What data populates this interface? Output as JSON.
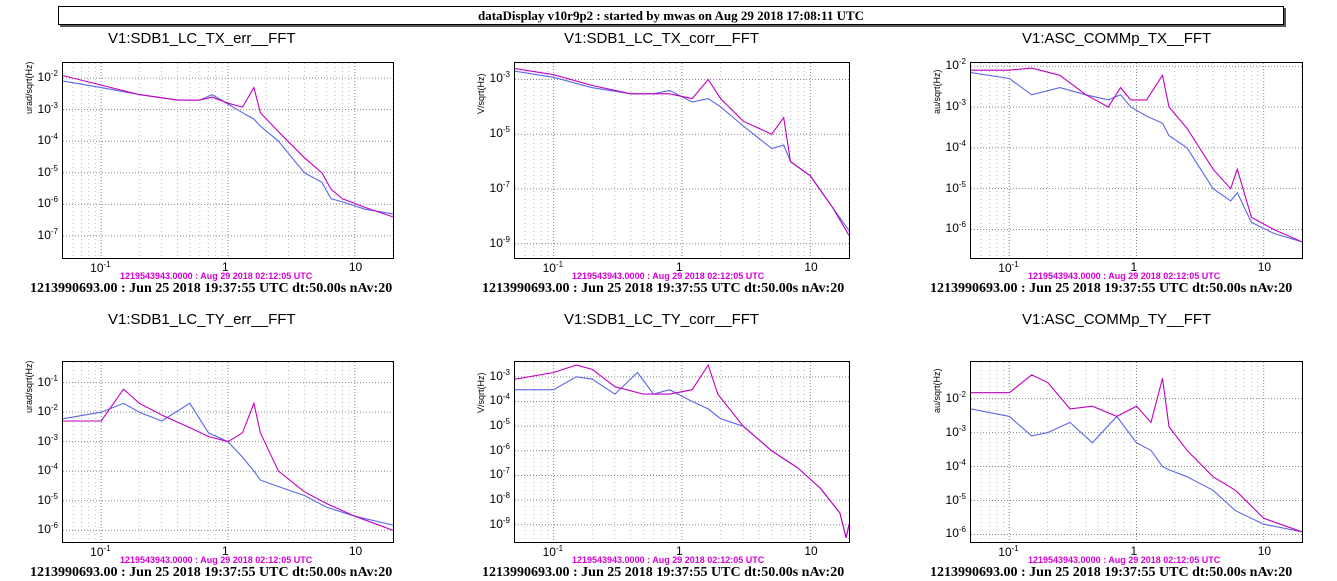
{
  "header": {
    "banner": "dataDisplay v10r9p2 : started by mwas on Aug 29 2018 17:08:11 UTC"
  },
  "colors": {
    "reference": "#5a68e8",
    "current": "#c000c0",
    "stamp": "#d400d4"
  },
  "chart_data": [
    {
      "type": "line",
      "title": "V1:SDB1_LC_TX_err__FFT",
      "ylabel": "urad/sqrt(Hz)",
      "xscale": "log",
      "yscale": "log",
      "xlim": [
        0.05,
        20
      ],
      "ylim": [
        2e-08,
        0.03
      ],
      "xticks": [
        "10-1",
        "1",
        "10"
      ],
      "yticks_exp": [
        -7,
        -6,
        -5,
        -4,
        -3,
        -2
      ],
      "ytick_mantissa": "10",
      "reference_stamp": "1219543943.0000 : Aug 29 2018 02:12:05 UTC",
      "footer": "1213990693.00 : Jun 25 2018 19:37:55 UTC dt:50.00s nAv:20",
      "grid": true,
      "series": [
        {
          "color": "magenta",
          "x": [
            0.05,
            0.1,
            0.2,
            0.4,
            0.6,
            0.75,
            1,
            1.3,
            1.6,
            1.8,
            2.5,
            4,
            5.5,
            6.5,
            8,
            12,
            20
          ],
          "y": [
            0.012,
            0.006,
            0.003,
            0.002,
            0.002,
            0.0025,
            0.0016,
            0.0012,
            0.005,
            0.0008,
            0.0002,
            3e-05,
            1e-05,
            3e-06,
            1.5e-06,
            8e-07,
            4e-07
          ]
        },
        {
          "color": "blue",
          "x": [
            0.05,
            0.1,
            0.2,
            0.4,
            0.6,
            0.75,
            1,
            1.3,
            1.6,
            1.8,
            2.5,
            4,
            5.5,
            6.5,
            8,
            12,
            20
          ],
          "y": [
            0.008,
            0.005,
            0.003,
            0.002,
            0.002,
            0.003,
            0.0015,
            0.0008,
            0.0005,
            0.0003,
            0.0001,
            1e-05,
            5e-06,
            1.5e-06,
            1.2e-06,
            7e-07,
            5e-07
          ]
        }
      ]
    },
    {
      "type": "line",
      "title": "V1:SDB1_LC_TX_corr__FFT",
      "ylabel": "V/sqrt(Hz)",
      "xscale": "log",
      "yscale": "log",
      "xlim": [
        0.05,
        20
      ],
      "ylim": [
        3e-10,
        0.004
      ],
      "xticks": [
        "10-1",
        "1",
        "10"
      ],
      "yticks_exp": [
        -9,
        -7,
        -5,
        -3
      ],
      "ytick_mantissa": "10",
      "reference_stamp": "1219543943.0000 : Aug 29 2018 02:12:05 UTC",
      "footer": "1213990693.00 : Jun 25 2018 19:37:55 UTC dt:50.00s nAv:20",
      "grid": true,
      "series": [
        {
          "color": "magenta",
          "x": [
            0.05,
            0.1,
            0.2,
            0.4,
            0.6,
            0.8,
            1.2,
            1.6,
            2,
            3,
            5,
            6.2,
            7,
            10,
            15,
            20
          ],
          "y": [
            0.0025,
            0.0015,
            0.0006,
            0.0003,
            0.0003,
            0.0003,
            0.0002,
            0.001,
            0.0002,
            3e-05,
            1e-05,
            4e-05,
            1e-06,
            3e-07,
            2e-08,
            2e-09
          ]
        },
        {
          "color": "blue",
          "x": [
            0.05,
            0.1,
            0.2,
            0.4,
            0.6,
            0.8,
            1.2,
            1.6,
            2,
            3,
            5,
            6.2,
            7,
            10,
            15,
            20
          ],
          "y": [
            0.002,
            0.0012,
            0.0005,
            0.0003,
            0.0003,
            0.0004,
            0.00015,
            0.0002,
            0.0001,
            2e-05,
            3e-06,
            4e-06,
            1e-06,
            3e-07,
            2e-08,
            3e-09
          ]
        }
      ]
    },
    {
      "type": "line",
      "title": "V1:ASC_COMMp_TX__FFT",
      "ylabel": "au/sqrt(Hz)",
      "xscale": "log",
      "yscale": "log",
      "xlim": [
        0.05,
        20
      ],
      "ylim": [
        2e-07,
        0.012
      ],
      "xticks": [
        "10-1",
        "1",
        "10"
      ],
      "yticks_exp": [
        -6,
        -5,
        -4,
        -3,
        -2
      ],
      "ytick_mantissa": "10",
      "reference_stamp": "1219543943.0000 : Aug 29 2018 02:12:05 UTC",
      "footer": "1213990693.00 : Jun 25 2018 19:37:55 UTC dt:50.00s nAv:20",
      "grid": true,
      "series": [
        {
          "color": "magenta",
          "x": [
            0.05,
            0.1,
            0.15,
            0.25,
            0.4,
            0.6,
            0.75,
            0.9,
            1.2,
            1.6,
            1.8,
            2.5,
            4,
            5.5,
            6.2,
            8,
            12,
            20
          ],
          "y": [
            0.008,
            0.008,
            0.009,
            0.006,
            0.002,
            0.001,
            0.003,
            0.0015,
            0.0015,
            0.006,
            0.001,
            0.0003,
            3e-05,
            1e-05,
            3e-05,
            2e-06,
            1e-06,
            5e-07
          ]
        },
        {
          "color": "blue",
          "x": [
            0.05,
            0.1,
            0.15,
            0.25,
            0.4,
            0.6,
            0.75,
            0.9,
            1.2,
            1.6,
            1.8,
            2.5,
            4,
            5.5,
            6.2,
            8,
            12,
            20
          ],
          "y": [
            0.007,
            0.005,
            0.002,
            0.003,
            0.002,
            0.0015,
            0.002,
            0.001,
            0.0006,
            0.0004,
            0.0002,
            0.0001,
            1e-05,
            5e-06,
            8e-06,
            1.5e-06,
            8e-07,
            5e-07
          ]
        }
      ]
    },
    {
      "type": "line",
      "title": "V1:SDB1_LC_TY_err__FFT",
      "ylabel": "urad/sqrt(Hz)",
      "xscale": "log",
      "yscale": "log",
      "xlim": [
        0.05,
        20
      ],
      "ylim": [
        4e-07,
        0.5
      ],
      "xticks": [
        "10-1",
        "1",
        "10"
      ],
      "yticks_exp": [
        -6,
        -5,
        -4,
        -3,
        -2,
        -1
      ],
      "ytick_mantissa": "10",
      "reference_stamp": "1219543943.0000 : Aug 29 2018 02:12:05 UTC",
      "footer": "1213990693.00 : Jun 25 2018 19:37:55 UTC dt:50.00s nAv:20",
      "grid": true,
      "series": [
        {
          "color": "magenta",
          "x": [
            0.05,
            0.1,
            0.15,
            0.2,
            0.3,
            0.5,
            0.7,
            1,
            1.3,
            1.6,
            1.8,
            2.5,
            4,
            6,
            10,
            20
          ],
          "y": [
            0.005,
            0.005,
            0.06,
            0.02,
            0.008,
            0.003,
            0.0015,
            0.001,
            0.002,
            0.02,
            0.002,
            0.0001,
            2e-05,
            8e-06,
            3e-06,
            1e-06
          ]
        },
        {
          "color": "blue",
          "x": [
            0.05,
            0.1,
            0.15,
            0.2,
            0.3,
            0.5,
            0.7,
            1,
            1.3,
            1.6,
            1.8,
            2.5,
            4,
            6,
            10,
            20
          ],
          "y": [
            0.006,
            0.01,
            0.02,
            0.01,
            0.005,
            0.02,
            0.002,
            0.001,
            0.0003,
            0.0001,
            5e-05,
            3e-05,
            1.5e-05,
            6e-06,
            3e-06,
            1.5e-06
          ]
        }
      ]
    },
    {
      "type": "line",
      "title": "V1:SDB1_LC_TY_corr__FFT",
      "ylabel": "V/sqrt(Hz)",
      "xscale": "log",
      "yscale": "log",
      "xlim": [
        0.05,
        20
      ],
      "ylim": [
        2e-10,
        0.004
      ],
      "xticks": [
        "10-1",
        "1",
        "10"
      ],
      "yticks_exp": [
        -9,
        -8,
        -7,
        -6,
        -5,
        -4,
        -3
      ],
      "ytick_mantissa": "10",
      "reference_stamp": "1219543943.0000 : Aug 29 2018 02:12:05 UTC",
      "footer": "1213990693.00 : Jun 25 2018 19:37:55 UTC dt:50.00s nAv:20",
      "grid": true,
      "series": [
        {
          "color": "magenta",
          "x": [
            0.05,
            0.1,
            0.15,
            0.2,
            0.3,
            0.5,
            0.8,
            1.2,
            1.6,
            1.9,
            3,
            5,
            8,
            12,
            17,
            19,
            20
          ],
          "y": [
            0.0008,
            0.0015,
            0.003,
            0.002,
            0.0004,
            0.0002,
            0.0002,
            0.0003,
            0.003,
            0.0002,
            1e-05,
            1e-06,
            2e-07,
            3e-08,
            3e-09,
            3e-10,
            1e-09
          ]
        },
        {
          "color": "blue",
          "x": [
            0.05,
            0.1,
            0.15,
            0.2,
            0.3,
            0.45,
            0.6,
            0.8,
            1.2,
            1.6,
            2,
            3,
            5,
            8,
            12,
            17,
            19,
            20
          ],
          "y": [
            0.0003,
            0.0003,
            0.001,
            0.0008,
            0.0002,
            0.0015,
            0.0002,
            0.0003,
            0.0001,
            5e-05,
            2e-05,
            1e-05,
            1e-06,
            2e-07,
            3e-08,
            3e-09,
            3e-10,
            1e-09
          ]
        }
      ]
    },
    {
      "type": "line",
      "title": "V1:ASC_COMMp_TY__FFT",
      "ylabel": "au/sqrt(Hz)",
      "xscale": "log",
      "yscale": "log",
      "xlim": [
        0.05,
        20
      ],
      "ylim": [
        6e-07,
        0.12
      ],
      "xticks": [
        "10-1",
        "1",
        "10"
      ],
      "yticks_exp": [
        -6,
        -5,
        -4,
        -3,
        -2
      ],
      "ytick_mantissa": "10",
      "reference_stamp": "1219543943.0000 : Aug 29 2018 02:12:05 UTC",
      "footer": "1213990693.00 : Jun 25 2018 19:37:55 UTC dt:50.00s nAv:20",
      "grid": true,
      "series": [
        {
          "color": "magenta",
          "x": [
            0.05,
            0.1,
            0.15,
            0.2,
            0.3,
            0.45,
            0.7,
            1,
            1.3,
            1.6,
            1.8,
            2.5,
            4,
            6,
            10,
            20
          ],
          "y": [
            0.015,
            0.015,
            0.05,
            0.03,
            0.005,
            0.006,
            0.003,
            0.006,
            0.002,
            0.04,
            0.0015,
            0.0003,
            5e-05,
            2e-05,
            3e-06,
            1.2e-06
          ]
        },
        {
          "color": "blue",
          "x": [
            0.05,
            0.1,
            0.15,
            0.2,
            0.3,
            0.45,
            0.7,
            1,
            1.3,
            1.6,
            1.8,
            2.5,
            4,
            6,
            10,
            20
          ],
          "y": [
            0.005,
            0.003,
            0.0008,
            0.001,
            0.002,
            0.0005,
            0.003,
            0.0005,
            0.0003,
            0.0001,
            8e-05,
            5e-05,
            2e-05,
            5e-06,
            2e-06,
            1.2e-06
          ]
        }
      ]
    }
  ]
}
